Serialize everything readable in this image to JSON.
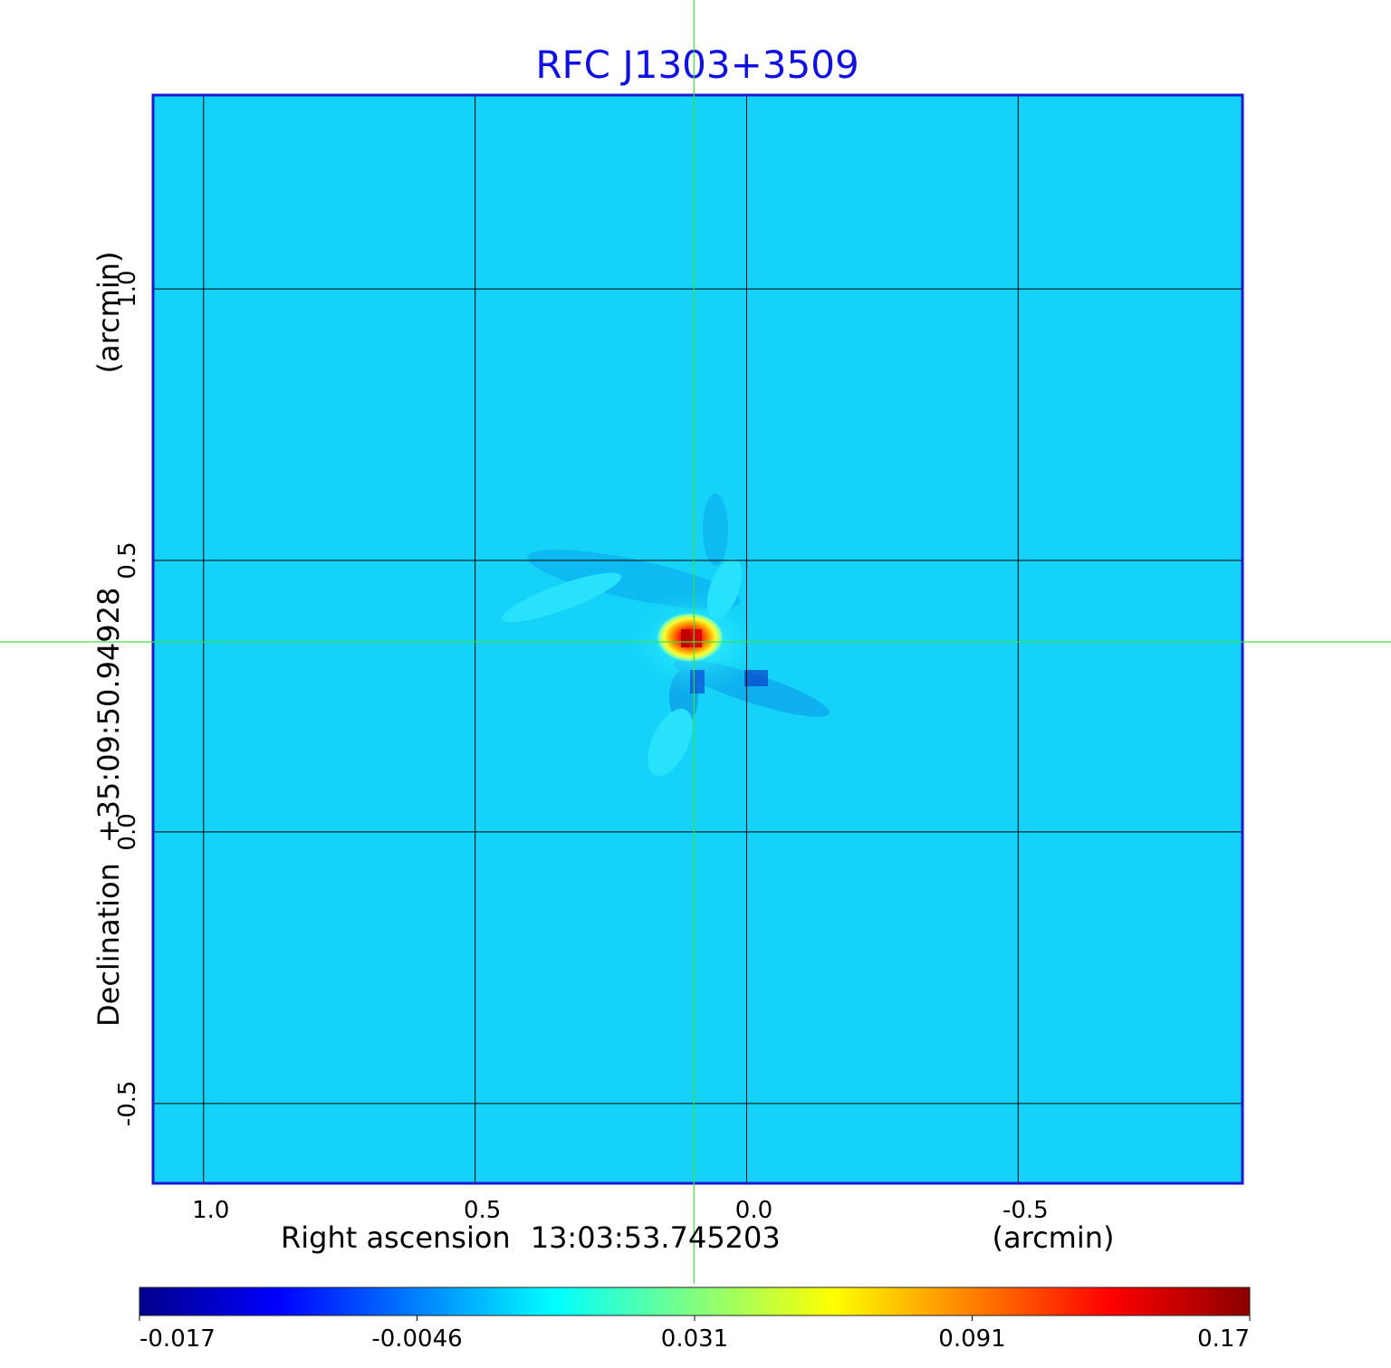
{
  "chart_data": {
    "type": "heatmap",
    "title": "RFC J1303+3509",
    "xlabel_prefix": "Right ascension",
    "xlabel_center": "13:03:53.745203",
    "xlabel_unit": "(arcmin)",
    "ylabel_prefix": "Declination",
    "ylabel_center": "+35:09:50.94928",
    "ylabel_unit": "(arcmin)",
    "x_ticks": [
      "1.0",
      "0.5",
      "0.0",
      "-0.5"
    ],
    "y_ticks": [
      "1.0",
      "0.5",
      "0.0",
      "-0.5"
    ],
    "x_tick_values": [
      1.0,
      0.5,
      0.0,
      -0.5
    ],
    "y_tick_values": [
      1.0,
      0.5,
      0.0,
      -0.5
    ],
    "xlim": [
      1.093,
      -0.913
    ],
    "ylim": [
      -0.647,
      1.357
    ],
    "grid": true,
    "crosshair": {
      "x": 0.097,
      "y": 0.35
    },
    "colorbar": {
      "ticks": [
        "-0.017",
        "-0.0046",
        "0.031",
        "0.091",
        "0.17"
      ],
      "colormap": [
        "#00008b",
        "#0000ff",
        "#0080ff",
        "#00ffff",
        "#80ff80",
        "#ffff00",
        "#ff8000",
        "#ff0000",
        "#8b0000"
      ]
    },
    "background_value": -0.0015,
    "peak": {
      "x": 0.097,
      "y": 0.35,
      "value": 0.17
    }
  },
  "colors": {
    "title": "#1010e0",
    "frame": "#1a1ad0",
    "background_map": "#14d2f8",
    "grid": "#000000",
    "crosshair": "#40e040"
  }
}
